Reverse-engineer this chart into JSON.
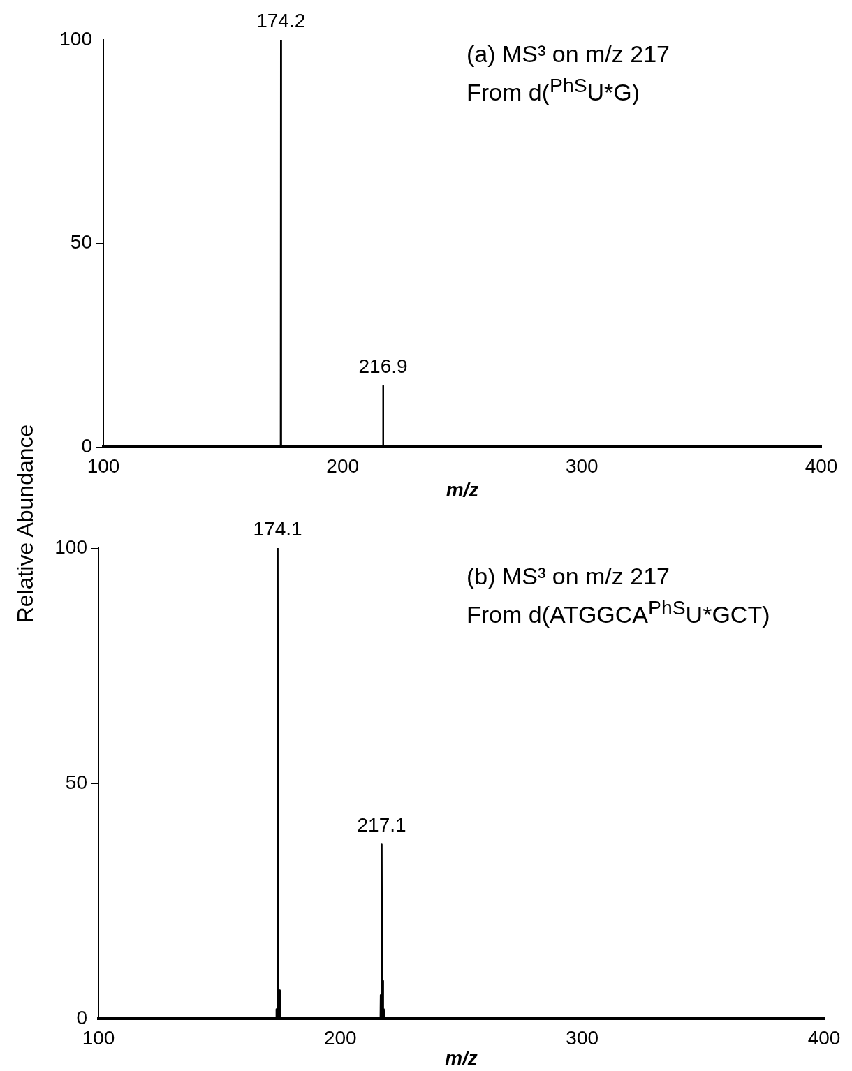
{
  "chart_data": [
    {
      "type": "line",
      "title": "(a) MS³ on m/z 217",
      "subtitle": "From d($^{PhS}$U*G)",
      "xlabel": "m/z",
      "ylabel": "Relative Abundance",
      "xlim": [
        100,
        400
      ],
      "xticks": [
        100,
        200,
        300,
        400
      ],
      "ylim": [
        0,
        100
      ],
      "yticks": [
        0,
        50,
        100
      ],
      "marker": "none",
      "series": [
        {
          "color": "#000000",
          "x": [
            100,
            174.1,
            174.2,
            174.3,
            216.8,
            216.9,
            217.0,
            400
          ],
          "values": [
            0,
            0,
            100,
            0,
            0,
            15,
            0,
            0
          ]
        }
      ],
      "annotations": [
        {
          "text": "174.2",
          "x": 174.2,
          "y": 100
        },
        {
          "text": "216.9",
          "x": 216.9,
          "y": 15
        }
      ]
    },
    {
      "type": "line",
      "title": "(b) MS³ on m/z 217",
      "subtitle": "From d(ATGGCA$^{PhS}$U*GCT)",
      "xlabel": "m/z",
      "xlim": [
        100,
        400
      ],
      "xticks": [
        100,
        200,
        300,
        400
      ],
      "ylim": [
        0,
        100
      ],
      "yticks": [
        0,
        50,
        100
      ],
      "marker": "none",
      "series": [
        {
          "color": "#000000",
          "x": [
            100,
            173.5,
            173.6,
            173.7,
            174.0,
            174.1,
            174.3,
            174.7,
            174.8,
            175.0,
            175.1,
            175.2,
            216.6,
            216.7,
            216.9,
            217.0,
            217.1,
            217.3,
            217.5,
            217.6,
            217.7,
            217.9,
            218.0,
            218.1,
            400
          ],
          "values": [
            0,
            0,
            2,
            0,
            0,
            100,
            0,
            0,
            6,
            0,
            3,
            0,
            0,
            5,
            0,
            0,
            37,
            0,
            0,
            8,
            0,
            0,
            2,
            0,
            0
          ]
        }
      ],
      "annotations": [
        {
          "text": "174.1",
          "x": 174.1,
          "y": 100
        },
        {
          "text": "217.1",
          "x": 217.1,
          "y": 37
        }
      ]
    }
  ]
}
